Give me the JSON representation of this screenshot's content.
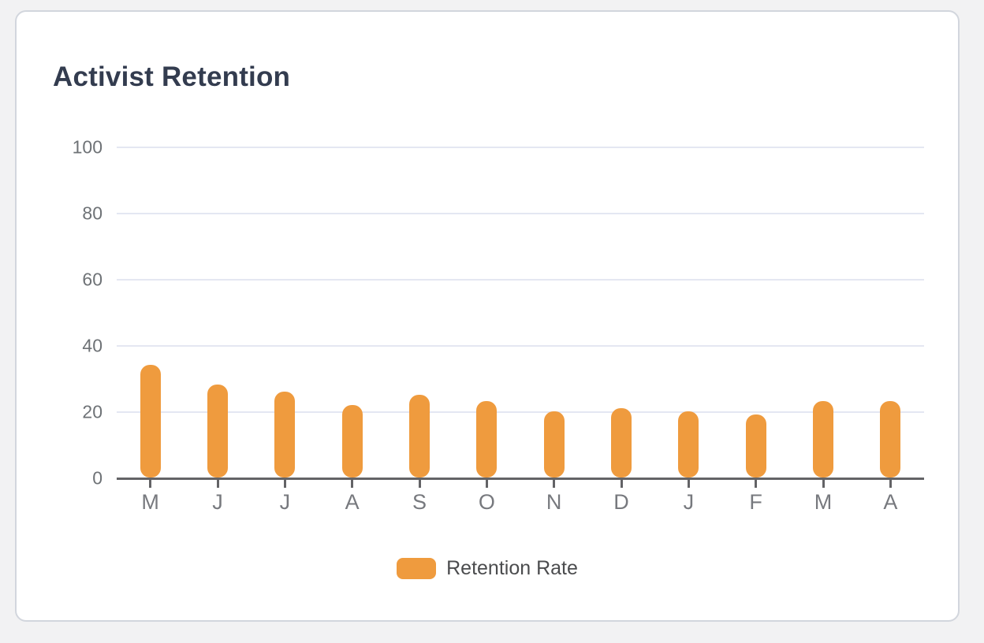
{
  "window": {
    "background_color": "#f2f2f3"
  },
  "card": {
    "title": "Activist Retention",
    "title_color": "#333c4f",
    "background_color": "#ffffff",
    "border_color": "#d2d6dd"
  },
  "chart_data": {
    "type": "bar",
    "title": "Activist Retention",
    "categories": [
      "M",
      "J",
      "J",
      "A",
      "S",
      "O",
      "N",
      "D",
      "J",
      "F",
      "M",
      "A"
    ],
    "series": [
      {
        "name": "Retention Rate",
        "color": "#ef9b3e",
        "values": [
          34,
          28,
          26,
          22,
          25,
          23,
          20,
          21,
          20,
          19,
          23,
          23
        ]
      }
    ],
    "xlabel": "",
    "ylabel": "",
    "ylim": [
      0,
      100
    ],
    "yticks": [
      0,
      20,
      40,
      60,
      80,
      100
    ],
    "grid": true,
    "legend_position": "bottom",
    "gridline_color": "#e4e7f2",
    "axis_color": "#636366",
    "y_tick_label_color": "#6e7276",
    "x_tick_label_color": "#77797e"
  },
  "legend": {
    "items": [
      {
        "label": "Retention Rate",
        "color": "#ef9b3e"
      }
    ]
  }
}
